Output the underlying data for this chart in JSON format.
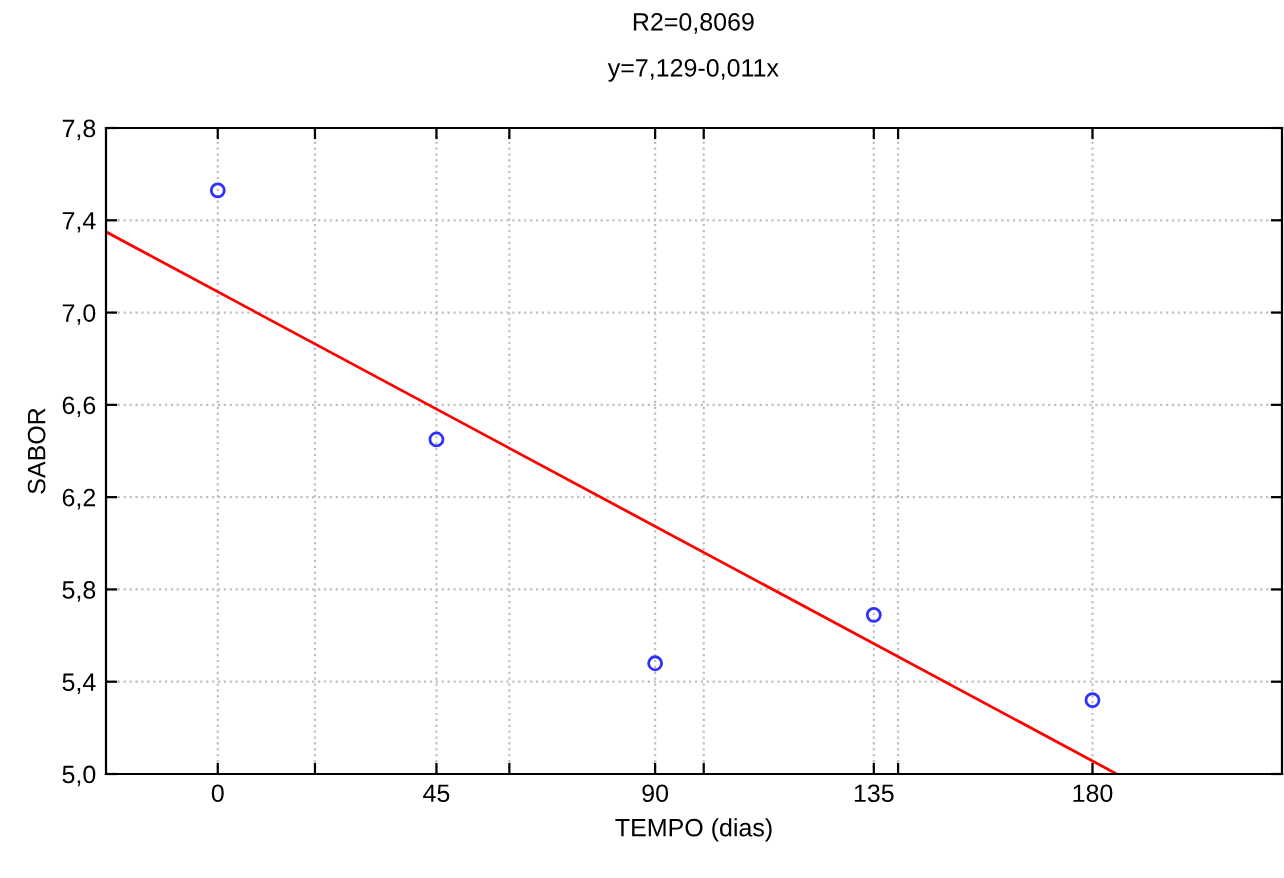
{
  "chart_data": {
    "type": "scatter",
    "title": "R2=0,8069",
    "subtitle": "y=7,129-0,011x",
    "xlabel": "TEMPO (dias)",
    "ylabel": "SABOR",
    "series": [
      {
        "color": "#3030ff",
        "x": [
          0,
          45,
          90,
          135,
          180
        ],
        "values": [
          7.53,
          6.45,
          5.48,
          5.69,
          5.32
        ],
        "marker": "circle"
      },
      {
        "type": "line",
        "color": "#ff0000",
        "x": [
          -23,
          185
        ],
        "values": [
          7.35,
          5.0
        ],
        "marker": "none",
        "line_style": "solid"
      }
    ],
    "xlim": [
      -23,
      219
    ],
    "ylim": [
      5.0,
      7.8
    ],
    "xticks": [
      {
        "value": 0,
        "label": "0"
      },
      {
        "value": 20,
        "label": null
      },
      {
        "value": 45,
        "label": "45"
      },
      {
        "value": 60,
        "label": null
      },
      {
        "value": 90,
        "label": "90"
      },
      {
        "value": 100,
        "label": null
      },
      {
        "value": 135,
        "label": "135"
      },
      {
        "value": 140,
        "label": null
      },
      {
        "value": 180,
        "label": "180"
      }
    ],
    "yticks": [
      {
        "value": 5.0,
        "label": "5,0"
      },
      {
        "value": 5.4,
        "label": "5,4"
      },
      {
        "value": 5.8,
        "label": "5,8"
      },
      {
        "value": 6.2,
        "label": "6,2"
      },
      {
        "value": 6.6,
        "label": "6,6"
      },
      {
        "value": 7.0,
        "label": "7,0"
      },
      {
        "value": 7.4,
        "label": "7,4"
      },
      {
        "value": 7.8,
        "label": "7,8"
      }
    ],
    "grid": true,
    "legend": false
  }
}
